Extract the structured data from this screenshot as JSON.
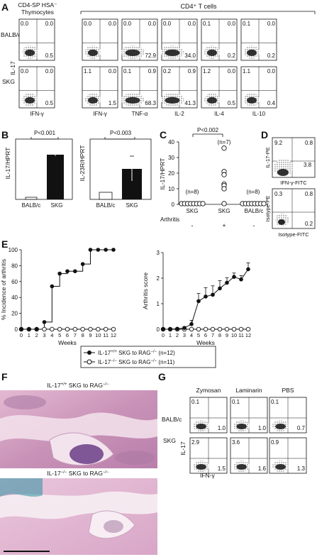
{
  "panel_letters": [
    "A",
    "B",
    "C",
    "D",
    "E",
    "F",
    "G"
  ],
  "panel_a": {
    "thymo_header_lines": [
      "CD4-SP HSA⁻",
      "Thymocytes"
    ],
    "cd4_header": "CD4⁺ T cells",
    "rows": [
      "BALB/c",
      "SKG"
    ],
    "y_label": "IL-17",
    "col_labels": [
      "IFN-γ",
      "IFN-γ",
      "TNF-α",
      "IL-2",
      "IL-4",
      "IL-10"
    ],
    "quadrants": [
      [
        [
          "0.0",
          "0.0",
          "0.5"
        ],
        [
          "0.0",
          "0.0",
          ""
        ],
        [
          "0.0",
          "0.0",
          "72.9"
        ],
        [
          "0.0",
          "0.0",
          "34.0"
        ],
        [
          "0.1",
          "0.0",
          "0.2"
        ],
        [
          "0.1",
          "0.0",
          "0.2"
        ]
      ],
      [
        [
          "0.0",
          "0.0",
          "0.5"
        ],
        [
          "1.1",
          "0.0",
          "1.5"
        ],
        [
          "0.1",
          "0.9",
          "68.3"
        ],
        [
          "0.2",
          "0.9",
          "41.3"
        ],
        [
          "1.2",
          "0.0",
          "0.5"
        ],
        [
          "1.1",
          "0.0",
          "0.4"
        ]
      ]
    ]
  },
  "panel_b": {
    "left_ylabel": "IL-17/HPRT",
    "right_ylabel": "IL-23R/HPRT",
    "left_p": "P<0.001",
    "right_p": "P<0.003",
    "groups": [
      "BALB/c",
      "SKG"
    ]
  },
  "panel_c": {
    "ylabel": "IL-17/HPRT",
    "p": "P<0.002",
    "yticks": [
      "0",
      "10",
      "20",
      "30",
      "40"
    ],
    "groups": [
      {
        "label": "SKG",
        "n": "(n=8)",
        "arthritis": "-"
      },
      {
        "label": "SKG",
        "n": "(n=7)",
        "arthritis": "+"
      },
      {
        "label": "BALB/c",
        "n": "(n=8)",
        "arthritis": "-"
      }
    ],
    "arthritis_label": "Arthritis",
    "skg_plus_values": [
      36,
      21,
      19,
      13,
      12,
      10
    ]
  },
  "panel_d": {
    "top": {
      "ul": "9.2",
      "ur": "0.8",
      "lr": "3.8",
      "ylabel": "IL-17-PE",
      "xlabel": "IFN-γ-FITC"
    },
    "bottom": {
      "ul": "0.3",
      "ur": "0.8",
      "lr": "0.2",
      "ylabel": "Isotype-PE",
      "xlabel": "Isotype-FITC"
    }
  },
  "chart_data": [
    {
      "type": "line",
      "ylabel": "% Incidence of arthritis",
      "xlabel": "Weeks",
      "x": [
        0,
        1,
        2,
        3,
        4,
        5,
        6,
        7,
        8,
        9,
        10,
        11,
        12
      ],
      "ylim": [
        0,
        100
      ],
      "yticks": [
        "0",
        "20",
        "40",
        "60",
        "80",
        "100"
      ],
      "xticks": [
        "0",
        "1",
        "2",
        "3",
        "4",
        "5",
        "6",
        "7",
        "8",
        "9",
        "10",
        "11",
        "12"
      ],
      "series": [
        {
          "name": "IL-17+/+ SKG to RAG-/- (n=12)",
          "values": [
            0,
            0,
            0,
            9,
            54,
            70,
            73,
            73,
            82,
            100,
            100,
            100,
            100
          ]
        },
        {
          "name": "IL-17-/- SKG to RAG-/- (n=11)",
          "values": [
            0,
            0,
            0,
            0,
            0,
            0,
            0,
            0,
            0,
            0,
            0,
            0,
            0
          ]
        }
      ]
    },
    {
      "type": "line",
      "ylabel": "Arthritis score",
      "xlabel": "Weeks",
      "x": [
        0,
        1,
        2,
        3,
        4,
        5,
        6,
        7,
        8,
        9,
        10,
        11,
        12
      ],
      "ylim": [
        0,
        3
      ],
      "yticks": [
        "0",
        "1",
        "2",
        "3"
      ],
      "xticks": [
        "0",
        "1",
        "2",
        "3",
        "4",
        "5",
        "6",
        "7",
        "8",
        "9",
        "10",
        "11",
        "12"
      ],
      "series": [
        {
          "name": "IL-17+/+ SKG to RAG-/- (n=12)",
          "values": [
            0,
            0,
            0.02,
            0.05,
            0.2,
            1.1,
            1.28,
            1.35,
            1.6,
            1.82,
            2.05,
            1.95,
            2.35
          ],
          "err": [
            0,
            0,
            0,
            0.05,
            0.15,
            0.3,
            0.35,
            0.35,
            0.3,
            0.2,
            0.15,
            0.15,
            0.25
          ]
        },
        {
          "name": "IL-17-/- SKG to RAG-/- (n=11)",
          "values": [
            0,
            0,
            0,
            0,
            0,
            0,
            0,
            0,
            0,
            0,
            0,
            0,
            0
          ]
        }
      ]
    }
  ],
  "legend_e": [
    {
      "base": "IL-17",
      "sup": "+/+",
      "mid": " SKG to RAG",
      "sup2": "−/−",
      "tail": " (n=12)"
    },
    {
      "base": "IL-17",
      "sup": "−/−",
      "mid": " SKG to RAG",
      "sup2": "−/−",
      "tail": " (n=11)"
    }
  ],
  "panel_f": {
    "top_title": {
      "base": "IL-17",
      "sup": "+/+",
      "mid": " SKG to RAG",
      "sup2": "−/−"
    },
    "bottom_title": {
      "base": "IL-17",
      "sup": "−/−",
      "mid": " SKG to RAG",
      "sup2": "−/−"
    }
  },
  "panel_g": {
    "cols": [
      "Zymosan",
      "Laminarin",
      "PBS"
    ],
    "rows": [
      "BALB/c",
      "SKG"
    ],
    "y_label": "IL-17",
    "x_label": "IFN-γ",
    "quadrants": [
      [
        [
          "0.1",
          "1.0"
        ],
        [
          "0.1",
          "1.0"
        ],
        [
          "0.1",
          "0.7"
        ]
      ],
      [
        [
          "2.9",
          "1.5"
        ],
        [
          "3.6",
          "1.6"
        ],
        [
          "0.9",
          "1.3"
        ]
      ]
    ]
  },
  "colors": {
    "ink": "#111111",
    "tissue_pink": "#d9a6c8",
    "tissue_purple": "#9a6aa8",
    "bone": "#f1dcea"
  }
}
